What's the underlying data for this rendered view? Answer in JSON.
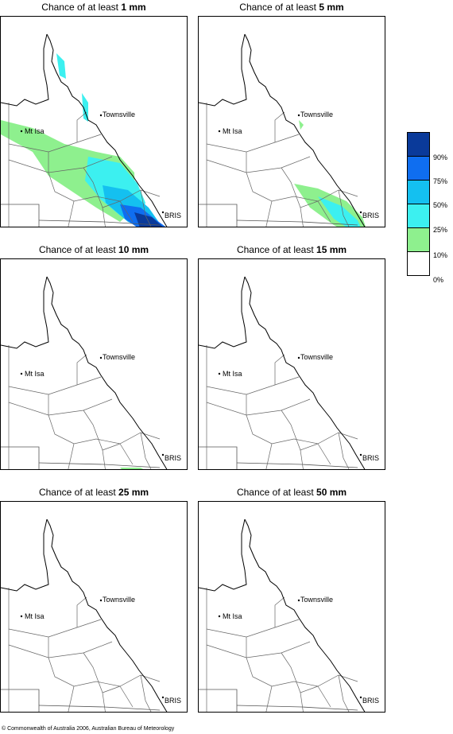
{
  "panels": [
    {
      "title_prefix": "Chance of at least ",
      "amount": "1 mm"
    },
    {
      "title_prefix": "Chance of at least ",
      "amount": "5 mm"
    },
    {
      "title_prefix": "Chance of at least ",
      "amount": "10 mm"
    },
    {
      "title_prefix": "Chance of at least ",
      "amount": "15 mm"
    },
    {
      "title_prefix": "Chance of at least ",
      "amount": "25 mm"
    },
    {
      "title_prefix": "Chance of at least ",
      "amount": "50 mm"
    }
  ],
  "places": {
    "townsville": "Townsville",
    "mt_isa": "Mt Isa",
    "bris": "BRIS"
  },
  "legend": {
    "labels": [
      "90%",
      "75%",
      "50%",
      "25%",
      "10%",
      "0%"
    ],
    "bands": [
      {
        "color": "#0a3a9a"
      },
      {
        "color": "#0f6ef0"
      },
      {
        "color": "#14c0f0"
      },
      {
        "color": "#3cf0f0"
      },
      {
        "color": "#8ef08e"
      },
      {
        "color": "#ffffff"
      }
    ]
  },
  "copyright": "© Commonwealth of Australia 2006, Australian Bureau of Meteorology"
}
